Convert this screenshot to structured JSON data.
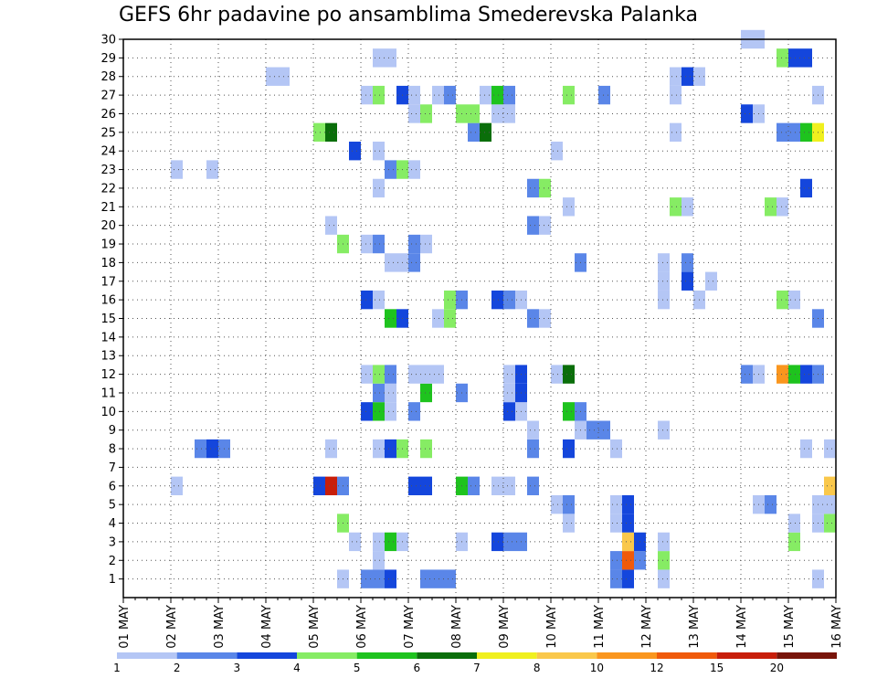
{
  "chart_data": {
    "type": "heatmap",
    "title": "GEFS 6hr padavine po ansamblima Smederevska Palanka",
    "y_ticks": [
      "1",
      "2",
      "3",
      "4",
      "5",
      "6",
      "7",
      "8",
      "9",
      "10",
      "11",
      "12",
      "13",
      "14",
      "15",
      "16",
      "17",
      "18",
      "19",
      "20",
      "21",
      "22",
      "23",
      "24",
      "25",
      "26",
      "27",
      "28",
      "29",
      "30"
    ],
    "x_ticks": [
      "01 MAY",
      "02 MAY",
      "03 MAY",
      "04 MAY",
      "05 MAY",
      "06 MAY",
      "07 MAY",
      "08 MAY",
      "09 MAY",
      "10 MAY",
      "11 MAY",
      "12 MAY",
      "13 MAY",
      "14 MAY",
      "15 MAY",
      "16 MAY"
    ],
    "xlim": [
      0,
      15
    ],
    "ylim": [
      0,
      30
    ],
    "grid": true,
    "colorbar": {
      "labels": [
        "1",
        "2",
        "3",
        "4",
        "5",
        "6",
        "7",
        "8",
        "10",
        "12",
        "15",
        "20"
      ],
      "colors": [
        "#b4c6f5",
        "#5a86e8",
        "#1446dc",
        "#86ec64",
        "#1ec31e",
        "#0a6e0a",
        "#f0f01e",
        "#fac84b",
        "#fa961e",
        "#f05a0a",
        "#c81e0a",
        "#78140a"
      ]
    },
    "cells": [
      {
        "member": 1,
        "t": 4.75,
        "c": 1
      },
      {
        "member": 1,
        "t": 5.25,
        "c": 2
      },
      {
        "member": 1,
        "t": 5.5,
        "c": 2
      },
      {
        "member": 1,
        "t": 5.75,
        "c": 3
      },
      {
        "member": 1,
        "t": 6.5,
        "c": 2
      },
      {
        "member": 1,
        "t": 6.75,
        "c": 2
      },
      {
        "member": 1,
        "t": 7.0,
        "c": 2
      },
      {
        "member": 1,
        "t": 10.5,
        "c": 2
      },
      {
        "member": 1,
        "t": 10.75,
        "c": 3
      },
      {
        "member": 1,
        "t": 11.5,
        "c": 1
      },
      {
        "member": 1,
        "t": 14.75,
        "c": 1
      },
      {
        "member": 2,
        "t": 5.5,
        "c": 1
      },
      {
        "member": 2,
        "t": 10.5,
        "c": 2
      },
      {
        "member": 2,
        "t": 10.75,
        "c": 10
      },
      {
        "member": 2,
        "t": 11.0,
        "c": 2
      },
      {
        "member": 2,
        "t": 11.5,
        "c": 4
      },
      {
        "member": 3,
        "t": 5.0,
        "c": 1
      },
      {
        "member": 3,
        "t": 5.5,
        "c": 1
      },
      {
        "member": 3,
        "t": 5.75,
        "c": 5
      },
      {
        "member": 3,
        "t": 6.0,
        "c": 1
      },
      {
        "member": 3,
        "t": 7.25,
        "c": 1
      },
      {
        "member": 3,
        "t": 8.0,
        "c": 3
      },
      {
        "member": 3,
        "t": 8.25,
        "c": 2
      },
      {
        "member": 3,
        "t": 8.5,
        "c": 2
      },
      {
        "member": 3,
        "t": 10.75,
        "c": 8
      },
      {
        "member": 3,
        "t": 11.0,
        "c": 3
      },
      {
        "member": 3,
        "t": 11.5,
        "c": 1
      },
      {
        "member": 3,
        "t": 14.25,
        "c": 4
      },
      {
        "member": 4,
        "t": 4.75,
        "c": 4
      },
      {
        "member": 4,
        "t": 9.5,
        "c": 1
      },
      {
        "member": 4,
        "t": 10.5,
        "c": 1
      },
      {
        "member": 4,
        "t": 10.75,
        "c": 3
      },
      {
        "member": 4,
        "t": 14.25,
        "c": 1
      },
      {
        "member": 4,
        "t": 14.75,
        "c": 1
      },
      {
        "member": 4,
        "t": 15.0,
        "c": 4
      },
      {
        "member": 5,
        "t": 9.25,
        "c": 1
      },
      {
        "member": 5,
        "t": 9.5,
        "c": 2
      },
      {
        "member": 5,
        "t": 10.5,
        "c": 1
      },
      {
        "member": 5,
        "t": 10.75,
        "c": 3
      },
      {
        "member": 5,
        "t": 13.5,
        "c": 1
      },
      {
        "member": 5,
        "t": 13.75,
        "c": 2
      },
      {
        "member": 5,
        "t": 14.75,
        "c": 1
      },
      {
        "member": 5,
        "t": 15.0,
        "c": 1
      },
      {
        "member": 6,
        "t": 1.25,
        "c": 1
      },
      {
        "member": 6,
        "t": 4.25,
        "c": 3
      },
      {
        "member": 6,
        "t": 4.5,
        "c": 11
      },
      {
        "member": 6,
        "t": 4.75,
        "c": 2
      },
      {
        "member": 6,
        "t": 6.25,
        "c": 3
      },
      {
        "member": 6,
        "t": 6.5,
        "c": 3
      },
      {
        "member": 6,
        "t": 7.25,
        "c": 5
      },
      {
        "member": 6,
        "t": 7.5,
        "c": 2
      },
      {
        "member": 6,
        "t": 8.0,
        "c": 1
      },
      {
        "member": 6,
        "t": 8.25,
        "c": 1
      },
      {
        "member": 6,
        "t": 8.75,
        "c": 2
      },
      {
        "member": 6,
        "t": 15.0,
        "c": 8
      },
      {
        "member": 8,
        "t": 1.75,
        "c": 2
      },
      {
        "member": 8,
        "t": 2.0,
        "c": 3
      },
      {
        "member": 8,
        "t": 2.25,
        "c": 2
      },
      {
        "member": 8,
        "t": 4.5,
        "c": 1
      },
      {
        "member": 8,
        "t": 5.5,
        "c": 1
      },
      {
        "member": 8,
        "t": 5.75,
        "c": 3
      },
      {
        "member": 8,
        "t": 6.0,
        "c": 4
      },
      {
        "member": 8,
        "t": 6.5,
        "c": 4
      },
      {
        "member": 8,
        "t": 8.75,
        "c": 2
      },
      {
        "member": 8,
        "t": 9.5,
        "c": 3
      },
      {
        "member": 8,
        "t": 10.5,
        "c": 1
      },
      {
        "member": 8,
        "t": 14.5,
        "c": 1
      },
      {
        "member": 8,
        "t": 15.0,
        "c": 1
      },
      {
        "member": 9,
        "t": 8.75,
        "c": 1
      },
      {
        "member": 9,
        "t": 9.75,
        "c": 1
      },
      {
        "member": 9,
        "t": 10.0,
        "c": 2
      },
      {
        "member": 9,
        "t": 10.25,
        "c": 2
      },
      {
        "member": 9,
        "t": 11.5,
        "c": 1
      },
      {
        "member": 10,
        "t": 5.25,
        "c": 3
      },
      {
        "member": 10,
        "t": 5.5,
        "c": 5
      },
      {
        "member": 10,
        "t": 5.75,
        "c": 1
      },
      {
        "member": 10,
        "t": 6.25,
        "c": 2
      },
      {
        "member": 10,
        "t": 8.25,
        "c": 3
      },
      {
        "member": 10,
        "t": 8.5,
        "c": 1
      },
      {
        "member": 10,
        "t": 9.5,
        "c": 5
      },
      {
        "member": 10,
        "t": 9.75,
        "c": 2
      },
      {
        "member": 11,
        "t": 5.5,
        "c": 2
      },
      {
        "member": 11,
        "t": 5.75,
        "c": 1
      },
      {
        "member": 11,
        "t": 6.5,
        "c": 5
      },
      {
        "member": 11,
        "t": 7.25,
        "c": 2
      },
      {
        "member": 11,
        "t": 8.25,
        "c": 1
      },
      {
        "member": 11,
        "t": 8.5,
        "c": 3
      },
      {
        "member": 12,
        "t": 5.25,
        "c": 1
      },
      {
        "member": 12,
        "t": 5.5,
        "c": 4
      },
      {
        "member": 12,
        "t": 5.75,
        "c": 2
      },
      {
        "member": 12,
        "t": 6.25,
        "c": 1
      },
      {
        "member": 12,
        "t": 6.5,
        "c": 1
      },
      {
        "member": 12,
        "t": 6.75,
        "c": 1
      },
      {
        "member": 12,
        "t": 8.25,
        "c": 1
      },
      {
        "member": 12,
        "t": 8.5,
        "c": 3
      },
      {
        "member": 12,
        "t": 9.25,
        "c": 1
      },
      {
        "member": 12,
        "t": 9.5,
        "c": 6
      },
      {
        "member": 12,
        "t": 13.25,
        "c": 2
      },
      {
        "member": 12,
        "t": 13.5,
        "c": 1
      },
      {
        "member": 12,
        "t": 14.0,
        "c": 9
      },
      {
        "member": 12,
        "t": 14.25,
        "c": 5
      },
      {
        "member": 12,
        "t": 14.5,
        "c": 3
      },
      {
        "member": 12,
        "t": 14.75,
        "c": 2
      },
      {
        "member": 15,
        "t": 5.75,
        "c": 5
      },
      {
        "member": 15,
        "t": 6.0,
        "c": 3
      },
      {
        "member": 15,
        "t": 6.75,
        "c": 1
      },
      {
        "member": 15,
        "t": 7.0,
        "c": 4
      },
      {
        "member": 15,
        "t": 8.75,
        "c": 2
      },
      {
        "member": 15,
        "t": 9.0,
        "c": 1
      },
      {
        "member": 15,
        "t": 14.75,
        "c": 2
      },
      {
        "member": 16,
        "t": 5.25,
        "c": 3
      },
      {
        "member": 16,
        "t": 5.5,
        "c": 1
      },
      {
        "member": 16,
        "t": 7.0,
        "c": 4
      },
      {
        "member": 16,
        "t": 7.25,
        "c": 2
      },
      {
        "member": 16,
        "t": 8.0,
        "c": 3
      },
      {
        "member": 16,
        "t": 8.25,
        "c": 2
      },
      {
        "member": 16,
        "t": 8.5,
        "c": 1
      },
      {
        "member": 16,
        "t": 11.5,
        "c": 1
      },
      {
        "member": 16,
        "t": 12.25,
        "c": 1
      },
      {
        "member": 16,
        "t": 14.0,
        "c": 4
      },
      {
        "member": 16,
        "t": 14.25,
        "c": 1
      },
      {
        "member": 17,
        "t": 11.5,
        "c": 1
      },
      {
        "member": 17,
        "t": 12.0,
        "c": 3
      },
      {
        "member": 17,
        "t": 12.5,
        "c": 1
      },
      {
        "member": 18,
        "t": 5.75,
        "c": 1
      },
      {
        "member": 18,
        "t": 6.0,
        "c": 1
      },
      {
        "member": 18,
        "t": 6.25,
        "c": 2
      },
      {
        "member": 18,
        "t": 9.75,
        "c": 2
      },
      {
        "member": 18,
        "t": 11.5,
        "c": 1
      },
      {
        "member": 18,
        "t": 12.0,
        "c": 2
      },
      {
        "member": 19,
        "t": 4.75,
        "c": 4
      },
      {
        "member": 19,
        "t": 5.25,
        "c": 1
      },
      {
        "member": 19,
        "t": 5.5,
        "c": 2
      },
      {
        "member": 19,
        "t": 6.25,
        "c": 2
      },
      {
        "member": 19,
        "t": 6.5,
        "c": 1
      },
      {
        "member": 20,
        "t": 4.5,
        "c": 1
      },
      {
        "member": 20,
        "t": 8.75,
        "c": 2
      },
      {
        "member": 20,
        "t": 9.0,
        "c": 1
      },
      {
        "member": 21,
        "t": 9.5,
        "c": 1
      },
      {
        "member": 21,
        "t": 11.75,
        "c": 4
      },
      {
        "member": 21,
        "t": 12.0,
        "c": 1
      },
      {
        "member": 21,
        "t": 13.75,
        "c": 4
      },
      {
        "member": 21,
        "t": 14.0,
        "c": 1
      },
      {
        "member": 22,
        "t": 5.5,
        "c": 1
      },
      {
        "member": 22,
        "t": 8.75,
        "c": 2
      },
      {
        "member": 22,
        "t": 9.0,
        "c": 4
      },
      {
        "member": 22,
        "t": 14.5,
        "c": 3
      },
      {
        "member": 23,
        "t": 1.25,
        "c": 1
      },
      {
        "member": 23,
        "t": 2.0,
        "c": 1
      },
      {
        "member": 23,
        "t": 5.75,
        "c": 2
      },
      {
        "member": 23,
        "t": 6.0,
        "c": 4
      },
      {
        "member": 23,
        "t": 6.25,
        "c": 1
      },
      {
        "member": 24,
        "t": 5.0,
        "c": 3
      },
      {
        "member": 24,
        "t": 5.5,
        "c": 1
      },
      {
        "member": 24,
        "t": 9.25,
        "c": 1
      },
      {
        "member": 25,
        "t": 4.25,
        "c": 4
      },
      {
        "member": 25,
        "t": 4.5,
        "c": 6
      },
      {
        "member": 25,
        "t": 7.5,
        "c": 2
      },
      {
        "member": 25,
        "t": 7.75,
        "c": 6
      },
      {
        "member": 25,
        "t": 11.75,
        "c": 1
      },
      {
        "member": 25,
        "t": 14.0,
        "c": 2
      },
      {
        "member": 25,
        "t": 14.25,
        "c": 2
      },
      {
        "member": 25,
        "t": 14.5,
        "c": 5
      },
      {
        "member": 25,
        "t": 14.75,
        "c": 7
      },
      {
        "member": 26,
        "t": 6.25,
        "c": 1
      },
      {
        "member": 26,
        "t": 6.5,
        "c": 4
      },
      {
        "member": 26,
        "t": 7.25,
        "c": 4
      },
      {
        "member": 26,
        "t": 7.5,
        "c": 4
      },
      {
        "member": 26,
        "t": 8.0,
        "c": 1
      },
      {
        "member": 26,
        "t": 8.25,
        "c": 1
      },
      {
        "member": 26,
        "t": 13.25,
        "c": 3
      },
      {
        "member": 26,
        "t": 13.5,
        "c": 1
      },
      {
        "member": 27,
        "t": 5.25,
        "c": 1
      },
      {
        "member": 27,
        "t": 5.5,
        "c": 4
      },
      {
        "member": 27,
        "t": 6.0,
        "c": 3
      },
      {
        "member": 27,
        "t": 6.25,
        "c": 1
      },
      {
        "member": 27,
        "t": 6.75,
        "c": 1
      },
      {
        "member": 27,
        "t": 7.0,
        "c": 2
      },
      {
        "member": 27,
        "t": 7.75,
        "c": 1
      },
      {
        "member": 27,
        "t": 8.0,
        "c": 5
      },
      {
        "member": 27,
        "t": 8.25,
        "c": 2
      },
      {
        "member": 27,
        "t": 9.5,
        "c": 4
      },
      {
        "member": 27,
        "t": 10.25,
        "c": 2
      },
      {
        "member": 27,
        "t": 11.75,
        "c": 1
      },
      {
        "member": 27,
        "t": 14.75,
        "c": 1
      },
      {
        "member": 28,
        "t": 3.25,
        "c": 1
      },
      {
        "member": 28,
        "t": 3.5,
        "c": 1
      },
      {
        "member": 28,
        "t": 11.75,
        "c": 1
      },
      {
        "member": 28,
        "t": 12.0,
        "c": 3
      },
      {
        "member": 28,
        "t": 12.25,
        "c": 1
      },
      {
        "member": 29,
        "t": 5.5,
        "c": 1
      },
      {
        "member": 29,
        "t": 5.75,
        "c": 1
      },
      {
        "member": 29,
        "t": 14.0,
        "c": 4
      },
      {
        "member": 29,
        "t": 14.25,
        "c": 3
      },
      {
        "member": 29,
        "t": 14.5,
        "c": 3
      },
      {
        "member": 30,
        "t": 13.25,
        "c": 1
      },
      {
        "member": 30,
        "t": 13.5,
        "c": 1
      }
    ]
  }
}
